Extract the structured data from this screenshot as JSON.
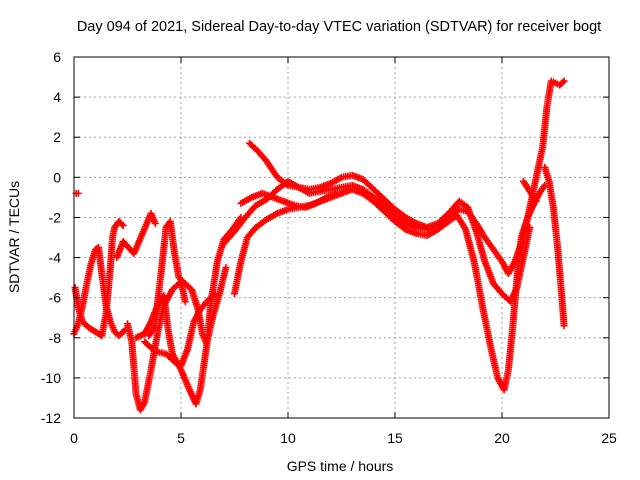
{
  "chart_data": {
    "type": "scatter",
    "title": "Day 094 of 2021, Sidereal Day-to-day VTEC variation (SDTVAR) for receiver bogt",
    "xlabel": "GPS time / hours",
    "ylabel": "SDTVAR / TECUs",
    "xlim": [
      0,
      25
    ],
    "ylim": [
      -12,
      6
    ],
    "xticks": [
      0,
      5,
      10,
      15,
      20,
      25
    ],
    "yticks": [
      -12,
      -10,
      -8,
      -6,
      -4,
      -2,
      0,
      2,
      4,
      6
    ],
    "xtick_labels": [
      "0",
      "5",
      "10",
      "15",
      "20",
      "25"
    ],
    "ytick_labels": [
      "-12",
      "-10",
      "-8",
      "-6",
      "-4",
      "-2",
      "0",
      "2",
      "4",
      "6"
    ],
    "grid": true,
    "legend": "none",
    "marker": "+",
    "color": "#ff0000",
    "series": [
      {
        "name": "trace-1",
        "points": [
          [
            0.0,
            -7.8
          ],
          [
            0.2,
            -7.3
          ],
          [
            0.4,
            -6.4
          ],
          [
            0.6,
            -5.3
          ],
          [
            0.8,
            -4.3
          ],
          [
            1.0,
            -3.6
          ],
          [
            1.15,
            -3.5
          ],
          [
            1.3,
            -4.8
          ],
          [
            1.5,
            -6.4
          ],
          [
            1.7,
            -7.2
          ],
          [
            1.9,
            -7.7
          ],
          [
            2.1,
            -7.9
          ],
          [
            2.4,
            -7.6
          ]
        ]
      },
      {
        "name": "trace-2",
        "points": [
          [
            0.05,
            -5.5
          ],
          [
            0.2,
            -6.5
          ],
          [
            0.4,
            -7.2
          ],
          [
            0.7,
            -7.5
          ],
          [
            1.0,
            -7.7
          ],
          [
            1.3,
            -7.9
          ],
          [
            1.5,
            -6.8
          ],
          [
            1.7,
            -4.5
          ],
          [
            1.8,
            -3.0
          ],
          [
            1.9,
            -2.5
          ],
          [
            2.1,
            -2.2
          ],
          [
            2.3,
            -2.4
          ]
        ]
      },
      {
        "name": "trace-3",
        "points": [
          [
            2.5,
            -7.3
          ],
          [
            2.7,
            -8.2
          ],
          [
            2.9,
            -10.8
          ],
          [
            3.1,
            -11.6
          ],
          [
            3.3,
            -11.2
          ],
          [
            3.6,
            -9.6
          ],
          [
            3.9,
            -7.8
          ],
          [
            4.2,
            -6.4
          ],
          [
            4.6,
            -5.6
          ],
          [
            5.0,
            -5.2
          ],
          [
            5.2,
            -6.2
          ]
        ]
      },
      {
        "name": "trace-4",
        "points": [
          [
            2.9,
            -8.0
          ],
          [
            3.3,
            -7.8
          ],
          [
            3.6,
            -7.2
          ],
          [
            3.9,
            -6.4
          ],
          [
            4.2,
            -5.9
          ],
          [
            4.4,
            -7.6
          ],
          [
            4.6,
            -8.8
          ],
          [
            5.0,
            -9.6
          ],
          [
            5.4,
            -10.6
          ],
          [
            5.7,
            -11.3
          ],
          [
            5.9,
            -10.6
          ],
          [
            6.2,
            -8.4
          ],
          [
            6.4,
            -6.2
          ],
          [
            6.7,
            -4.2
          ],
          [
            7.0,
            -3.1
          ],
          [
            7.4,
            -2.6
          ],
          [
            7.8,
            -2.0
          ]
        ]
      },
      {
        "name": "trace-5",
        "points": [
          [
            3.5,
            -7.9
          ],
          [
            3.8,
            -7.4
          ],
          [
            3.9,
            -6.3
          ],
          [
            4.1,
            -4.5
          ],
          [
            4.3,
            -2.5
          ],
          [
            4.5,
            -2.2
          ],
          [
            4.7,
            -3.8
          ],
          [
            4.9,
            -5.0
          ],
          [
            5.2,
            -5.3
          ],
          [
            5.5,
            -5.6
          ],
          [
            5.8,
            -6.6
          ],
          [
            6.0,
            -7.8
          ],
          [
            6.2,
            -8.3
          ],
          [
            6.5,
            -6.9
          ],
          [
            6.8,
            -5.8
          ],
          [
            7.1,
            -4.5
          ]
        ]
      },
      {
        "name": "trace-6",
        "points": [
          [
            3.3,
            -8.2
          ],
          [
            3.6,
            -8.5
          ],
          [
            3.9,
            -8.7
          ],
          [
            4.3,
            -8.8
          ],
          [
            4.7,
            -9.2
          ],
          [
            5.0,
            -9.4
          ],
          [
            5.3,
            -8.6
          ],
          [
            5.6,
            -7.2
          ],
          [
            5.9,
            -6.6
          ],
          [
            6.2,
            -6.2
          ],
          [
            6.6,
            -5.8
          ]
        ]
      },
      {
        "name": "trace-7",
        "points": [
          [
            7.0,
            -3.3
          ],
          [
            7.5,
            -2.7
          ],
          [
            8.0,
            -2.0
          ],
          [
            8.5,
            -1.4
          ],
          [
            9.0,
            -1.1
          ],
          [
            9.5,
            -0.6
          ],
          [
            10.0,
            -0.2
          ],
          [
            10.5,
            -0.5
          ],
          [
            11.0,
            -0.8
          ],
          [
            11.5,
            -0.7
          ],
          [
            12.0,
            -0.6
          ],
          [
            12.5,
            -0.5
          ],
          [
            13.0,
            -0.4
          ],
          [
            13.5,
            -0.6
          ],
          [
            14.0,
            -1.0
          ],
          [
            14.5,
            -1.4
          ],
          [
            15.0,
            -1.9
          ],
          [
            15.5,
            -2.3
          ],
          [
            16.0,
            -2.5
          ],
          [
            16.5,
            -2.6
          ],
          [
            17.0,
            -2.4
          ],
          [
            17.5,
            -2.0
          ],
          [
            18.0,
            -1.6
          ],
          [
            18.4,
            -1.7
          ],
          [
            18.8,
            -2.3
          ],
          [
            19.2,
            -3.0
          ],
          [
            19.6,
            -3.6
          ],
          [
            20.0,
            -4.2
          ],
          [
            20.3,
            -4.8
          ],
          [
            20.6,
            -4.2
          ],
          [
            21.0,
            -3.0
          ],
          [
            21.3,
            -1.5
          ],
          [
            21.6,
            0.0
          ],
          [
            21.9,
            1.5
          ],
          [
            22.1,
            3.5
          ],
          [
            22.3,
            4.8
          ],
          [
            22.5,
            4.7
          ],
          [
            22.7,
            4.6
          ],
          [
            22.9,
            4.8
          ]
        ]
      },
      {
        "name": "trace-8",
        "points": [
          [
            7.5,
            -5.8
          ],
          [
            7.8,
            -4.2
          ],
          [
            8.1,
            -3.0
          ],
          [
            8.5,
            -2.5
          ],
          [
            9.0,
            -2.1
          ],
          [
            9.5,
            -1.8
          ],
          [
            10.0,
            -1.6
          ],
          [
            10.5,
            -1.5
          ],
          [
            11.0,
            -1.4
          ],
          [
            11.5,
            -1.2
          ],
          [
            12.0,
            -1.0
          ],
          [
            12.5,
            -0.8
          ],
          [
            13.0,
            -0.6
          ],
          [
            13.5,
            -0.8
          ],
          [
            14.0,
            -1.2
          ],
          [
            14.5,
            -1.7
          ],
          [
            15.0,
            -2.2
          ],
          [
            15.5,
            -2.6
          ],
          [
            16.0,
            -2.8
          ],
          [
            16.5,
            -2.9
          ],
          [
            17.0,
            -2.6
          ],
          [
            17.5,
            -2.2
          ],
          [
            17.9,
            -1.9
          ],
          [
            18.3,
            -2.6
          ],
          [
            18.7,
            -4.2
          ],
          [
            19.1,
            -6.5
          ],
          [
            19.5,
            -8.6
          ],
          [
            19.8,
            -10.0
          ],
          [
            20.1,
            -10.6
          ],
          [
            20.3,
            -9.6
          ],
          [
            20.5,
            -7.5
          ],
          [
            20.7,
            -5.0
          ],
          [
            20.9,
            -3.0
          ],
          [
            21.2,
            -2.0
          ],
          [
            21.5,
            -1.3
          ],
          [
            21.8,
            -0.7
          ],
          [
            22.0,
            -0.4
          ]
        ]
      },
      {
        "name": "trace-9",
        "points": [
          [
            8.2,
            1.7
          ],
          [
            8.6,
            1.3
          ],
          [
            9.0,
            0.8
          ],
          [
            9.5,
            0.0
          ],
          [
            10.0,
            -0.4
          ],
          [
            10.5,
            -0.5
          ],
          [
            11.0,
            -0.6
          ],
          [
            11.5,
            -0.5
          ],
          [
            12.0,
            -0.3
          ],
          [
            12.5,
            0.0
          ],
          [
            13.0,
            0.1
          ],
          [
            13.5,
            -0.1
          ],
          [
            14.0,
            -0.6
          ],
          [
            14.5,
            -1.1
          ],
          [
            15.0,
            -1.6
          ],
          [
            15.5,
            -2.0
          ],
          [
            16.0,
            -2.3
          ],
          [
            16.5,
            -2.5
          ],
          [
            17.0,
            -2.3
          ],
          [
            17.5,
            -1.8
          ],
          [
            18.0,
            -1.2
          ],
          [
            18.4,
            -1.5
          ],
          [
            18.8,
            -2.7
          ],
          [
            19.2,
            -4.2
          ],
          [
            19.6,
            -5.3
          ],
          [
            20.0,
            -5.8
          ],
          [
            20.4,
            -6.2
          ],
          [
            20.7,
            -5.5
          ],
          [
            21.0,
            -4.0
          ],
          [
            21.3,
            -2.5
          ]
        ]
      },
      {
        "name": "trace-10",
        "points": [
          [
            7.8,
            -1.3
          ],
          [
            8.3,
            -1.0
          ],
          [
            8.8,
            -0.8
          ],
          [
            9.3,
            -1.0
          ],
          [
            9.8,
            -1.2
          ],
          [
            10.3,
            -1.4
          ],
          [
            10.8,
            -1.5
          ],
          [
            11.3,
            -1.3
          ],
          [
            11.8,
            -1.0
          ],
          [
            12.3,
            -0.8
          ]
        ]
      },
      {
        "name": "trace-11",
        "points": [
          [
            22.0,
            0.5
          ],
          [
            22.2,
            -0.2
          ],
          [
            22.4,
            -1.5
          ],
          [
            22.6,
            -3.5
          ],
          [
            22.8,
            -6.0
          ],
          [
            22.9,
            -7.4
          ]
        ]
      },
      {
        "name": "trace-12",
        "points": [
          [
            21.0,
            -0.2
          ],
          [
            21.3,
            -0.7
          ],
          [
            21.6,
            -1.2
          ]
        ]
      },
      {
        "name": "trace-13",
        "points": [
          [
            0.1,
            -0.8
          ],
          [
            0.2,
            -0.8
          ]
        ]
      },
      {
        "name": "trace-14",
        "points": [
          [
            2.0,
            -4.0
          ],
          [
            2.3,
            -3.2
          ],
          [
            2.8,
            -3.8
          ],
          [
            3.6,
            -1.8
          ],
          [
            3.8,
            -2.3
          ]
        ]
      }
    ]
  }
}
